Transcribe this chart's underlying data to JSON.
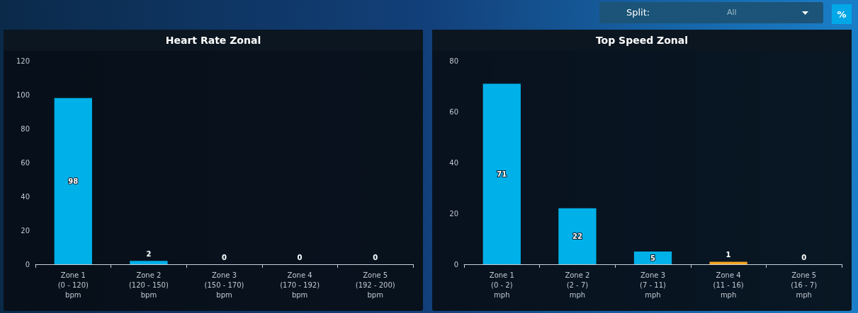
{
  "chart_data": [
    {
      "type": "other",
      "annotations": [
        "Split:",
        "All",
        "%"
      ]
    },
    {
      "type": "bar",
      "title": "Heart Rate Zonal",
      "categories": [
        "Zone 1\n(0 - 120)\nbpm",
        "Zone 2\n(120 - 150)\nbpm",
        "Zone 3\n(150 - 170)\nbpm",
        "Zone 4\n(170 - 192)\nbpm",
        "Zone 5\n(192 - 200)\nbpm"
      ],
      "values": [
        98,
        2,
        0,
        0,
        0
      ],
      "colors": [
        "#00b0e8",
        "#00b0e8",
        "#00b0e8",
        "#00b0e8",
        "#00b0e8"
      ],
      "ylim": [
        0,
        120
      ],
      "yticks": [
        0,
        20,
        40,
        60,
        80,
        100,
        120
      ],
      "grid": false,
      "data_labels": true
    },
    {
      "type": "bar",
      "title": "Top Speed Zonal",
      "categories": [
        "Zone 1\n(0 - 2)\nmph",
        "Zone 2\n(2 - 7)\nmph",
        "Zone 3\n(7 - 11)\nmph",
        "Zone 4\n(11 - 16)\nmph",
        "Zone 5\n(16 - 7)\nmph"
      ],
      "values": [
        71,
        22,
        5,
        1,
        0
      ],
      "colors": [
        "#00b0e8",
        "#00b0e8",
        "#00b0e8",
        "#f5a623",
        "#00b0e8"
      ],
      "ylim": [
        0,
        80
      ],
      "yticks": [
        0,
        20,
        40,
        60,
        80
      ],
      "grid": false,
      "data_labels": true
    }
  ]
}
